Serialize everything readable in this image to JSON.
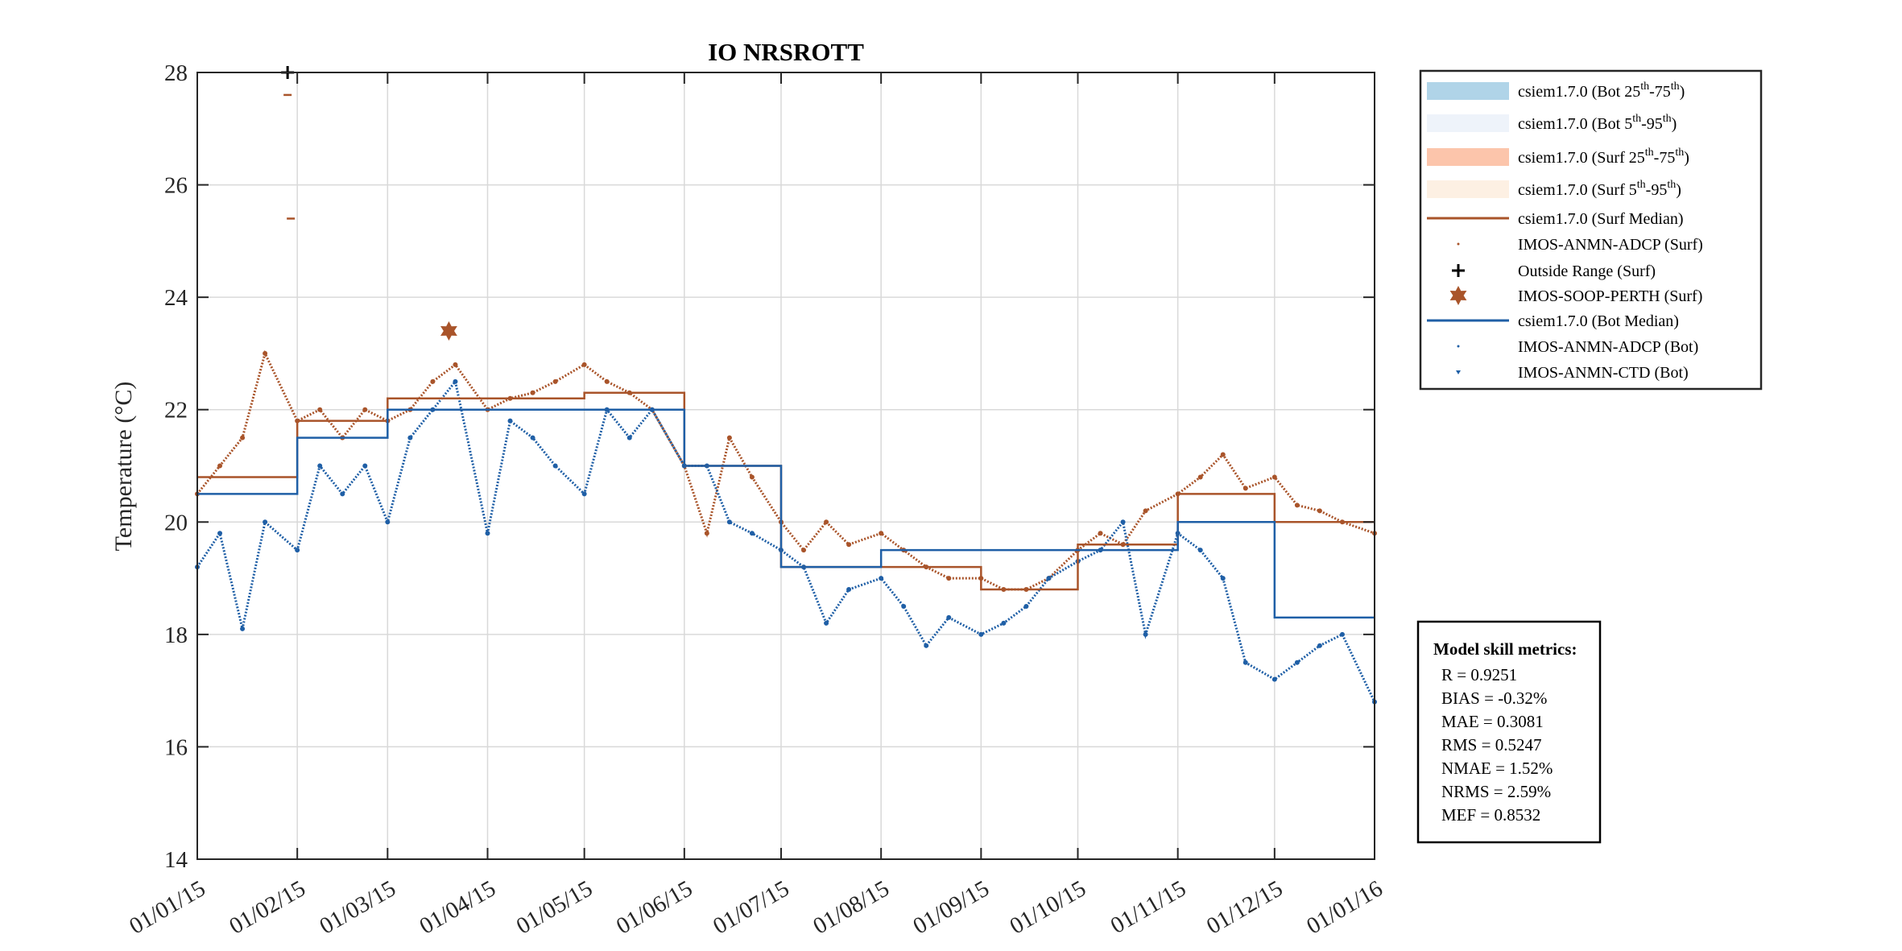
{
  "chart_data": {
    "type": "scatter",
    "title": "IO NRSROTT",
    "xlabel": "",
    "ylabel": "Temperature (°C)",
    "ylim": [
      14,
      28
    ],
    "xlim": [
      "2015-01-01",
      "2016-01-01"
    ],
    "grid": true,
    "legend_position": "outside-right-top",
    "yticks": [
      "14",
      "16",
      "18",
      "20",
      "22",
      "24",
      "26",
      "28"
    ],
    "xticks": [
      {
        "date": "2015-01-01",
        "label": "01/01/15"
      },
      {
        "date": "2015-02-01",
        "label": "01/02/15"
      },
      {
        "date": "2015-03-01",
        "label": "01/03/15"
      },
      {
        "date": "2015-04-01",
        "label": "01/04/15"
      },
      {
        "date": "2015-05-01",
        "label": "01/05/15"
      },
      {
        "date": "2015-06-01",
        "label": "01/06/15"
      },
      {
        "date": "2015-07-01",
        "label": "01/07/15"
      },
      {
        "date": "2015-08-01",
        "label": "01/08/15"
      },
      {
        "date": "2015-09-01",
        "label": "01/09/15"
      },
      {
        "date": "2015-10-01",
        "label": "01/10/15"
      },
      {
        "date": "2015-11-01",
        "label": "01/11/15"
      },
      {
        "date": "2015-12-01",
        "label": "01/12/15"
      },
      {
        "date": "2016-01-01",
        "label": "01/01/16"
      }
    ],
    "colors": {
      "surf": "#a9542a",
      "bot": "#1f5fa6",
      "bot_iqr": "#b0d4e8",
      "bot_90": "#eef3fa",
      "surf_iqr": "#fcc5ab",
      "surf_90": "#fdf0e3",
      "outside": "#000000"
    },
    "legend": [
      {
        "label_main": "csiem1.7.0 (Bot 25",
        "sup1": "th",
        "mid": "-75",
        "sup2": "th",
        "end": ")",
        "kind": "band",
        "color": "#b0d4e8"
      },
      {
        "label_main": "csiem1.7.0 (Bot 5",
        "sup1": "th",
        "mid": "-95",
        "sup2": "th",
        "end": ")",
        "kind": "band",
        "color": "#eef3fa"
      },
      {
        "label_main": "csiem1.7.0 (Surf 25",
        "sup1": "th",
        "mid": "-75",
        "sup2": "th",
        "end": ")",
        "kind": "band",
        "color": "#fcc5ab"
      },
      {
        "label_main": "csiem1.7.0 (Surf 5",
        "sup1": "th",
        "mid": "-95",
        "sup2": "th",
        "end": ")",
        "kind": "band",
        "color": "#fdf0e3"
      },
      {
        "label_main": "csiem1.7.0 (Surf Median)",
        "kind": "line",
        "color": "#a9542a"
      },
      {
        "label_main": "IMOS-ANMN-ADCP (Surf)",
        "kind": "dot",
        "color": "#a9542a"
      },
      {
        "label_main": "Outside Range (Surf)",
        "kind": "plus",
        "color": "#000000"
      },
      {
        "label_main": "IMOS-SOOP-PERTH (Surf)",
        "kind": "star",
        "color": "#a9542a"
      },
      {
        "label_main": "csiem1.7.0 (Bot Median)",
        "kind": "line",
        "color": "#1f5fa6"
      },
      {
        "label_main": "IMOS-ANMN-ADCP (Bot)",
        "kind": "dot",
        "color": "#1f5fa6"
      },
      {
        "label_main": "IMOS-ANMN-CTD (Bot)",
        "kind": "tri",
        "color": "#1f5fa6"
      }
    ],
    "series": [
      {
        "name": "IMOS-ANMN-ADCP (Surf)",
        "kind": "obs",
        "color": "#a9542a",
        "x": [
          "2015-01-01",
          "2015-01-08",
          "2015-01-15",
          "2015-01-22",
          "2015-02-01",
          "2015-02-08",
          "2015-02-15",
          "2015-02-22",
          "2015-03-01",
          "2015-03-08",
          "2015-03-15",
          "2015-03-22",
          "2015-04-01",
          "2015-04-08",
          "2015-04-15",
          "2015-04-22",
          "2015-05-01",
          "2015-05-08",
          "2015-05-15",
          "2015-05-22",
          "2015-06-01",
          "2015-06-08",
          "2015-06-15",
          "2015-06-22",
          "2015-07-01",
          "2015-07-08",
          "2015-07-15",
          "2015-07-22",
          "2015-08-01",
          "2015-08-08",
          "2015-08-15",
          "2015-08-22",
          "2015-09-01",
          "2015-09-08",
          "2015-09-15",
          "2015-09-22",
          "2015-10-01",
          "2015-10-08",
          "2015-10-15",
          "2015-10-22",
          "2015-11-01",
          "2015-11-08",
          "2015-11-15",
          "2015-11-22",
          "2015-12-01",
          "2015-12-08",
          "2015-12-15",
          "2015-12-22",
          "2016-01-01"
        ],
        "y": [
          20.5,
          21.0,
          21.5,
          23.0,
          21.8,
          22.0,
          21.5,
          22.0,
          21.8,
          22.0,
          22.5,
          22.8,
          22.0,
          22.2,
          22.3,
          22.5,
          22.8,
          22.5,
          22.3,
          22.0,
          21.0,
          19.8,
          21.5,
          20.8,
          20.0,
          19.5,
          20.0,
          19.6,
          19.8,
          19.5,
          19.2,
          19.0,
          19.0,
          18.8,
          18.8,
          19.0,
          19.5,
          19.8,
          19.6,
          20.2,
          20.5,
          20.8,
          21.2,
          20.6,
          20.8,
          20.3,
          20.2,
          20.0,
          19.8
        ]
      },
      {
        "name": "IMOS-ANMN-ADCP (Bot)",
        "kind": "obs",
        "color": "#1f5fa6",
        "x": [
          "2015-01-01",
          "2015-01-08",
          "2015-01-15",
          "2015-01-22",
          "2015-02-01",
          "2015-02-08",
          "2015-02-15",
          "2015-02-22",
          "2015-03-01",
          "2015-03-08",
          "2015-03-15",
          "2015-03-22",
          "2015-04-01",
          "2015-04-08",
          "2015-04-15",
          "2015-04-22",
          "2015-05-01",
          "2015-05-08",
          "2015-05-15",
          "2015-05-22",
          "2015-06-01",
          "2015-06-08",
          "2015-06-15",
          "2015-06-22",
          "2015-07-01",
          "2015-07-08",
          "2015-07-15",
          "2015-07-22",
          "2015-08-01",
          "2015-08-08",
          "2015-08-15",
          "2015-08-22",
          "2015-09-01",
          "2015-09-08",
          "2015-09-15",
          "2015-09-22",
          "2015-10-01",
          "2015-10-08",
          "2015-10-15",
          "2015-10-22",
          "2015-11-01",
          "2015-11-08",
          "2015-11-15",
          "2015-11-22",
          "2015-12-01",
          "2015-12-08",
          "2015-12-15",
          "2015-12-22",
          "2016-01-01"
        ],
        "y": [
          19.2,
          19.8,
          18.1,
          20.0,
          19.5,
          21.0,
          20.5,
          21.0,
          20.0,
          21.5,
          22.0,
          22.5,
          19.8,
          21.8,
          21.5,
          21.0,
          20.5,
          22.0,
          21.5,
          22.0,
          21.0,
          21.0,
          20.0,
          19.8,
          19.5,
          19.2,
          18.2,
          18.8,
          19.0,
          18.5,
          17.8,
          18.3,
          18.0,
          18.2,
          18.5,
          19.0,
          19.3,
          19.5,
          20.0,
          18.0,
          19.8,
          19.5,
          19.0,
          17.5,
          17.2,
          17.5,
          17.8,
          18.0,
          16.8
        ]
      },
      {
        "name": "csiem1.7.0 (Surf Median)",
        "kind": "median",
        "color": "#a9542a",
        "x": [
          "2015-01-01",
          "2015-02-01",
          "2015-03-01",
          "2015-04-01",
          "2015-05-01",
          "2015-06-01",
          "2015-07-01",
          "2015-08-01",
          "2015-09-01",
          "2015-10-01",
          "2015-11-01",
          "2015-12-01",
          "2016-01-01"
        ],
        "y": [
          20.8,
          21.8,
          22.2,
          22.2,
          22.3,
          21.0,
          19.2,
          19.2,
          18.8,
          19.6,
          20.5,
          20.0,
          20.0
        ]
      },
      {
        "name": "csiem1.7.0 (Bot Median)",
        "kind": "median",
        "color": "#1f5fa6",
        "x": [
          "2015-01-01",
          "2015-02-01",
          "2015-03-01",
          "2015-04-01",
          "2015-05-01",
          "2015-06-01",
          "2015-07-01",
          "2015-08-01",
          "2015-09-01",
          "2015-10-01",
          "2015-11-01",
          "2015-12-01",
          "2016-01-01"
        ],
        "y": [
          20.5,
          21.5,
          22.0,
          22.0,
          22.0,
          21.0,
          19.2,
          19.5,
          19.5,
          19.5,
          20.0,
          18.3,
          18.3
        ]
      }
    ],
    "outside_range": [
      {
        "x": "2015-01-29",
        "y": 28.0
      }
    ],
    "surf_extra_points": [
      {
        "x": "2015-01-29",
        "y": 27.6
      },
      {
        "x": "2015-01-30",
        "y": 25.4
      }
    ],
    "soop_points": [
      {
        "x": "2015-03-20",
        "y": 23.4
      }
    ]
  },
  "metrics": {
    "title": "Model skill metrics:",
    "rows": [
      "R    = 0.9251",
      "BIAS = -0.32%",
      "MAE  = 0.3081",
      "RMS  = 0.5247",
      "NMAE = 1.52%",
      "NRMS = 2.59%",
      "MEF  = 0.8532"
    ]
  }
}
